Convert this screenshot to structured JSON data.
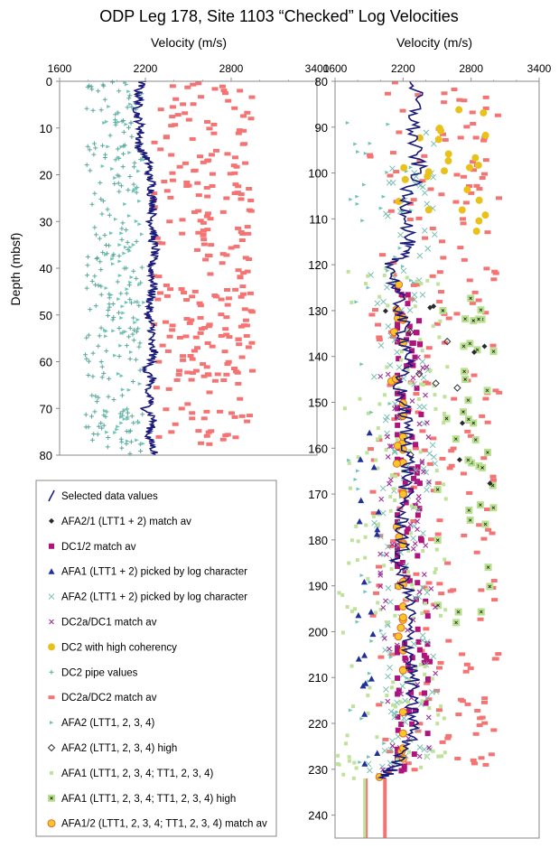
{
  "title": "ODP Leg 178, Site 1103 “Checked” Log Velocities",
  "colors": {
    "selected": "#1a1a7a",
    "afa21": "#2a2a2a",
    "dc12": "#b0137c",
    "afa1_picked": "#1f2f9c",
    "afa2_picked": "#6fbcae",
    "dc2a_dc1": "#a0309a",
    "dc2_high": "#e8c21a",
    "dc2_pipe": "#5aa89c",
    "dc2a_dc2": "#f47474",
    "afa2": "#6fc4b8",
    "afa2_high": "#333333",
    "afa1": "#bfe29a",
    "afa1_high_fill": "#b8e08e",
    "afa12_fill": "#f7c72a",
    "afa12_edge": "#e06a2a"
  },
  "chart_data": [
    {
      "type": "scatter",
      "panel": "left",
      "xlabel": "Velocity (m/s)",
      "ylabel": "Depth (mbsf)",
      "xlim": [
        1600,
        3400
      ],
      "ylim": [
        0,
        80
      ],
      "y_reversed": true,
      "x_ticks": [
        "1600",
        "2200",
        "2800",
        "3400"
      ],
      "y_ticks": [
        "0",
        "10",
        "20",
        "30",
        "40",
        "50",
        "60",
        "70",
        "80"
      ],
      "x_tick_values": [
        1600,
        2200,
        2800,
        3400
      ],
      "y_tick_values": [
        0,
        10,
        20,
        30,
        40,
        50,
        60,
        70,
        80
      ],
      "selected_data": {
        "depth": [
          0,
          2,
          4,
          6,
          8,
          10,
          12,
          14,
          16,
          18,
          20,
          22,
          24,
          26,
          28,
          30,
          32,
          34,
          36,
          38,
          40,
          42,
          44,
          46,
          48,
          50,
          52,
          54,
          56,
          58,
          60,
          62,
          64,
          66,
          68,
          70,
          72,
          74,
          76,
          78,
          80
        ],
        "velocity": [
          2180,
          2150,
          2160,
          2140,
          2150,
          2170,
          2160,
          2150,
          2200,
          2230,
          2220,
          2250,
          2240,
          2260,
          2250,
          2240,
          2260,
          2250,
          2270,
          2250,
          2240,
          2250,
          2260,
          2240,
          2230,
          2220,
          2240,
          2250,
          2230,
          2260,
          2240,
          2200,
          2260,
          2190,
          2250,
          2200,
          2260,
          2240,
          2220,
          2250,
          2270
        ]
      },
      "clouds": [
        {
          "name": "DC2a/DC2 match av",
          "type": "dc2a_dc2",
          "depth_range": [
            0,
            78
          ],
          "vel_range": [
            2250,
            2950
          ],
          "count": 260
        },
        {
          "name": "DC2 pipe values",
          "type": "dc2_pipe",
          "depth_range": [
            0,
            80
          ],
          "vel_range": [
            1780,
            2180
          ],
          "count": 210
        },
        {
          "name": "AFA2 (LTT1, 2, 3, 4)",
          "type": "afa2",
          "depth_range": [
            0,
            80
          ],
          "vel_range": [
            1900,
            2200
          ],
          "count": 90
        }
      ]
    },
    {
      "type": "scatter",
      "panel": "right",
      "xlabel": "Velocity (m/s)",
      "xlim": [
        1600,
        3400
      ],
      "ylim": [
        80,
        245
      ],
      "y_reversed": true,
      "x_ticks": [
        "1600",
        "2200",
        "2800",
        "3400"
      ],
      "y_ticks": [
        "80",
        "90",
        "100",
        "110",
        "120",
        "130",
        "140",
        "150",
        "160",
        "170",
        "180",
        "190",
        "200",
        "210",
        "220",
        "230",
        "240"
      ],
      "x_tick_values": [
        1600,
        2200,
        2800,
        3400
      ],
      "y_tick_values": [
        80,
        90,
        100,
        110,
        120,
        130,
        140,
        150,
        160,
        170,
        180,
        190,
        200,
        210,
        220,
        230,
        240
      ],
      "selected_data": {
        "depth": [
          80,
          85,
          90,
          95,
          100,
          105,
          110,
          115,
          118,
          120,
          125,
          130,
          135,
          140,
          145,
          150,
          155,
          160,
          165,
          170,
          175,
          180,
          185,
          190,
          195,
          200,
          205,
          210,
          215,
          220,
          225,
          230,
          232
        ],
        "velocity": [
          2300,
          2310,
          2290,
          2300,
          2350,
          2200,
          2260,
          2240,
          2180,
          2100,
          2130,
          2180,
          2200,
          2260,
          2150,
          2200,
          2230,
          2250,
          2240,
          2220,
          2180,
          2200,
          2150,
          2230,
          2260,
          2240,
          2270,
          2280,
          2260,
          2300,
          2240,
          2100,
          2050
        ]
      },
      "clouds": [
        {
          "name": "DC2a/DC2 match av",
          "type": "dc2a_dc2",
          "depth_range": [
            80,
            232
          ],
          "vel_range": [
            1900,
            3050
          ],
          "count": 230
        },
        {
          "name": "DC1/2 match av",
          "type": "dc12",
          "depth_range": [
            125,
            232
          ],
          "vel_range": [
            2150,
            2700
          ],
          "count": 120
        },
        {
          "name": "AFA2 (LTT1 + 2) picked by log character",
          "type": "afa2_picked",
          "depth_range": [
            90,
            232
          ],
          "vel_range": [
            1750,
            2550
          ],
          "count": 150
        },
        {
          "name": "AFA1 (LTT1, 2, 3, 4; TT1, 2, 3, 4)",
          "type": "afa1",
          "depth_range": [
            120,
            232
          ],
          "vel_range": [
            1620,
            2600
          ],
          "count": 160
        },
        {
          "name": "AFA1 (LTT1, 2, 3, 4; TT1, 2, 3, 4) high",
          "type": "afa1_high",
          "depth_range": [
            125,
            200
          ],
          "vel_range": [
            2500,
            3000
          ],
          "count": 40
        },
        {
          "name": "DC2a/DC1 match av",
          "type": "dc2a_dc1",
          "depth_range": [
            140,
            232
          ],
          "vel_range": [
            2000,
            2800
          ],
          "count": 70
        },
        {
          "name": "AFA2 (LTT1, 2, 3, 4)",
          "type": "afa2",
          "depth_range": [
            80,
            232
          ],
          "vel_range": [
            1700,
            2300
          ],
          "count": 60
        },
        {
          "name": "DC2 with high coherency",
          "type": "dc2_high",
          "depth_range": [
            85,
            120
          ],
          "vel_range": [
            2150,
            2950
          ],
          "count": 25
        },
        {
          "name": "AFA1/2 (LTT1, 2, 3, 4; TT1, 2, 3, 4) match av",
          "type": "afa12",
          "depth_range": [
            124,
            232
          ],
          "vel_range": [
            1850,
            2200
          ],
          "count": 40
        },
        {
          "name": "AFA1 (LTT1 + 2) picked by log character",
          "type": "afa1_picked",
          "depth_range": [
            150,
            232
          ],
          "vel_range": [
            1800,
            2000
          ],
          "count": 20
        },
        {
          "name": "AFA2/1 (LTT1 + 2) match av",
          "type": "afa21",
          "depth_range": [
            125,
            172
          ],
          "vel_range": [
            2000,
            3000
          ],
          "count": 8
        },
        {
          "name": "AFA2 (LTT1, 2, 3, 4) high",
          "type": "afa2_high",
          "depth_range": [
            130,
            165
          ],
          "vel_range": [
            2200,
            2700
          ],
          "count": 6
        }
      ]
    }
  ],
  "legend": [
    {
      "label": "Selected data values",
      "type": "selected"
    },
    {
      "label": "AFA2/1 (LTT1 + 2) match av",
      "type": "afa21"
    },
    {
      "label": "DC1/2 match av",
      "type": "dc12"
    },
    {
      "label": "AFA1 (LTT1 + 2) picked by log character",
      "type": "afa1_picked"
    },
    {
      "label": "AFA2 (LTT1 + 2) picked by log character",
      "type": "afa2_picked"
    },
    {
      "label": "DC2a/DC1 match av",
      "type": "dc2a_dc1"
    },
    {
      "label": "DC2 with high coherency",
      "type": "dc2_high"
    },
    {
      "label": "DC2 pipe values",
      "type": "dc2_pipe"
    },
    {
      "label": "DC2a/DC2 match av",
      "type": "dc2a_dc2"
    },
    {
      "label": "AFA2 (LTT1, 2, 3, 4)",
      "type": "afa2"
    },
    {
      "label": "AFA2 (LTT1, 2, 3, 4) high",
      "type": "afa2_high"
    },
    {
      "label": "AFA1 (LTT1, 2, 3, 4; TT1, 2, 3, 4)",
      "type": "afa1"
    },
    {
      "label": "AFA1 (LTT1, 2, 3, 4; TT1, 2, 3, 4) high",
      "type": "afa1_high"
    },
    {
      "label": "AFA1/2 (LTT1, 2, 3, 4; TT1, 2, 3, 4) match av",
      "type": "afa12"
    }
  ]
}
